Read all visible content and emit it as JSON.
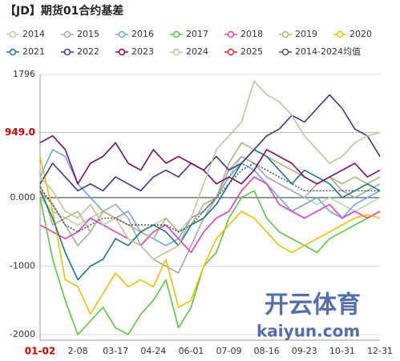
{
  "chart_data": {
    "type": "line",
    "title": "【JD】期货01合约基差",
    "categories": [
      "01-02",
      null,
      null,
      "2-08",
      null,
      null,
      "03-17",
      null,
      null,
      "04-24",
      null,
      null,
      "06-01",
      null,
      null,
      "07-09",
      null,
      null,
      "08-16",
      null,
      null,
      "09-23",
      null,
      null,
      "10-31",
      null,
      null,
      "12-31"
    ],
    "ylim": [
      -2080,
      1796
    ],
    "yticks": [
      1796,
      {
        "value": 949,
        "label": "949.0"
      },
      {
        "value": 0,
        "label": "0.000"
      },
      -1000,
      -2000
    ],
    "highlight_tick": 1,
    "grid": true,
    "legend": "top",
    "series": [
      {
        "name": "2014",
        "color": "#b5d9a8",
        "values": [
          0,
          -200,
          -300,
          -400,
          -300,
          -200,
          -300,
          -400,
          -500,
          -400,
          -300,
          -500,
          -300,
          -200,
          0,
          300,
          600,
          500,
          300,
          200,
          100,
          0,
          -100,
          0,
          -100,
          -200,
          -100,
          0
        ]
      },
      {
        "name": "2015",
        "color": "#a8a8a8",
        "values": [
          100,
          -100,
          -400,
          -700,
          -500,
          -200,
          -100,
          -300,
          -700,
          -900,
          -1000,
          -1100,
          -700,
          -300,
          0,
          400,
          600,
          500,
          300,
          200,
          100,
          0,
          200,
          300,
          100,
          0,
          100,
          200
        ]
      },
      {
        "name": "2016",
        "color": "#6fa8dc",
        "values": [
          300,
          700,
          600,
          200,
          0,
          -200,
          -300,
          -200,
          -500,
          -600,
          -700,
          -600,
          -300,
          -200,
          0,
          300,
          500,
          400,
          200,
          0,
          -200,
          -100,
          0,
          -200,
          -300,
          -100,
          0,
          100
        ]
      },
      {
        "name": "2017",
        "color": "#5cc83c",
        "values": [
          0,
          -900,
          -1500,
          -2000,
          -1800,
          -1600,
          -1900,
          -2000,
          -1700,
          -1500,
          -1200,
          -1900,
          -1600,
          -1000,
          -800,
          -300,
          0,
          100,
          -300,
          -500,
          -600,
          -700,
          -800,
          -600,
          -500,
          -400,
          -300,
          -200
        ]
      },
      {
        "name": "2018",
        "color": "#e040c0",
        "values": [
          -400,
          -500,
          -600,
          -500,
          -300,
          -400,
          -500,
          -600,
          -700,
          -500,
          -400,
          -600,
          -800,
          -500,
          -300,
          -200,
          100,
          300,
          200,
          -100,
          -200,
          -300,
          -200,
          -100,
          -300,
          -200,
          -300,
          -200
        ]
      },
      {
        "name": "2019",
        "color": "#b8b080",
        "values": [
          200,
          -400,
          -300,
          -200,
          -500,
          -200,
          -300,
          -400,
          -500,
          -600,
          -300,
          -500,
          -400,
          -100,
          0,
          500,
          800,
          700,
          600,
          500,
          400,
          300,
          200,
          300,
          200,
          300,
          200,
          300
        ]
      },
      {
        "name": "2020",
        "color": "#f0c000",
        "values": [
          600,
          -200,
          -1200,
          -1300,
          -1700,
          -1400,
          -1100,
          -1300,
          -1200,
          -1300,
          -900,
          -1600,
          -1500,
          -1000,
          -600,
          -400,
          -200,
          -300,
          -500,
          -700,
          -800,
          -700,
          -600,
          -500,
          -400,
          -300,
          -250,
          -300
        ]
      },
      {
        "name": "2021",
        "color": "#1a7a80",
        "values": [
          100,
          -300,
          -800,
          -1200,
          -1000,
          -900,
          -600,
          -700,
          -500,
          -400,
          -500,
          -700,
          -400,
          -300,
          -100,
          200,
          500,
          700,
          600,
          400,
          200,
          400,
          300,
          200,
          0,
          100,
          200,
          100
        ]
      },
      {
        "name": "2022",
        "color": "#3a3a8a",
        "values": [
          200,
          500,
          300,
          100,
          200,
          100,
          300,
          200,
          100,
          300,
          400,
          300,
          500,
          400,
          600,
          400,
          500,
          700,
          900,
          1000,
          1200,
          1100,
          1300,
          1500,
          1300,
          1000,
          900,
          600
        ]
      },
      {
        "name": "2023",
        "color": "#7a1060",
        "values": [
          800,
          900,
          700,
          200,
          500,
          600,
          800,
          500,
          400,
          700,
          500,
          600,
          500,
          400,
          200,
          300,
          200,
          400,
          700,
          600,
          500,
          300,
          200,
          300,
          400,
          500,
          300,
          400
        ]
      },
      {
        "name": "2024",
        "color": "#c8c0a0",
        "values": [
          300,
          100,
          -200,
          -300,
          -100,
          -400,
          -300,
          -600,
          -700,
          -900,
          -800,
          -700,
          -300,
          200,
          700,
          900,
          1100,
          1700,
          1500,
          1400,
          1200,
          900,
          700,
          500,
          600,
          800,
          900,
          949
        ]
      },
      {
        "name": "2025",
        "color": "#d03030",
        "values": [
          null,
          null,
          null,
          null,
          null,
          null,
          null,
          null,
          null,
          null,
          null,
          null,
          null,
          null,
          null,
          null,
          null,
          null,
          null,
          null,
          null,
          null,
          null,
          null,
          null,
          null,
          null,
          null
        ]
      },
      {
        "name": "2014-2024均值",
        "color": "#555555",
        "dashed": true,
        "values": [
          150,
          -100,
          -400,
          -500,
          -400,
          -300,
          -300,
          -400,
          -400,
          -400,
          -400,
          -500,
          -400,
          -200,
          0,
          200,
          400,
          500,
          400,
          300,
          200,
          100,
          100,
          100,
          100,
          100,
          100,
          100
        ]
      }
    ]
  },
  "watermark": {
    "cn": "开云体育",
    "en": "kaiyun.com"
  }
}
